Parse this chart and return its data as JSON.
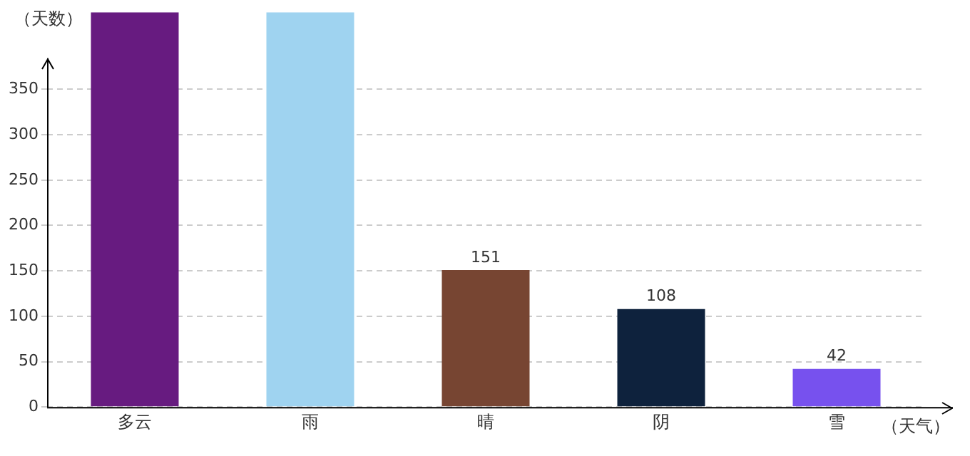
{
  "chart_data": {
    "type": "bar",
    "xlabel": "（天气）",
    "ylabel": "（天数）",
    "categories": [
      "多云",
      "雨",
      "晴",
      "阴",
      "雪"
    ],
    "values": [
      435,
      435,
      151,
      108,
      42
    ],
    "colors": [
      "#671b80",
      "#9fd3f0",
      "#774532",
      "#0e223d",
      "#7751ee"
    ],
    "value_labels": [
      null,
      null,
      "151",
      "108",
      "42"
    ],
    "ylim": [
      0,
      435
    ],
    "yticks": [
      0,
      50,
      100,
      150,
      200,
      250,
      300,
      350
    ],
    "grid": "y",
    "legend": false
  }
}
